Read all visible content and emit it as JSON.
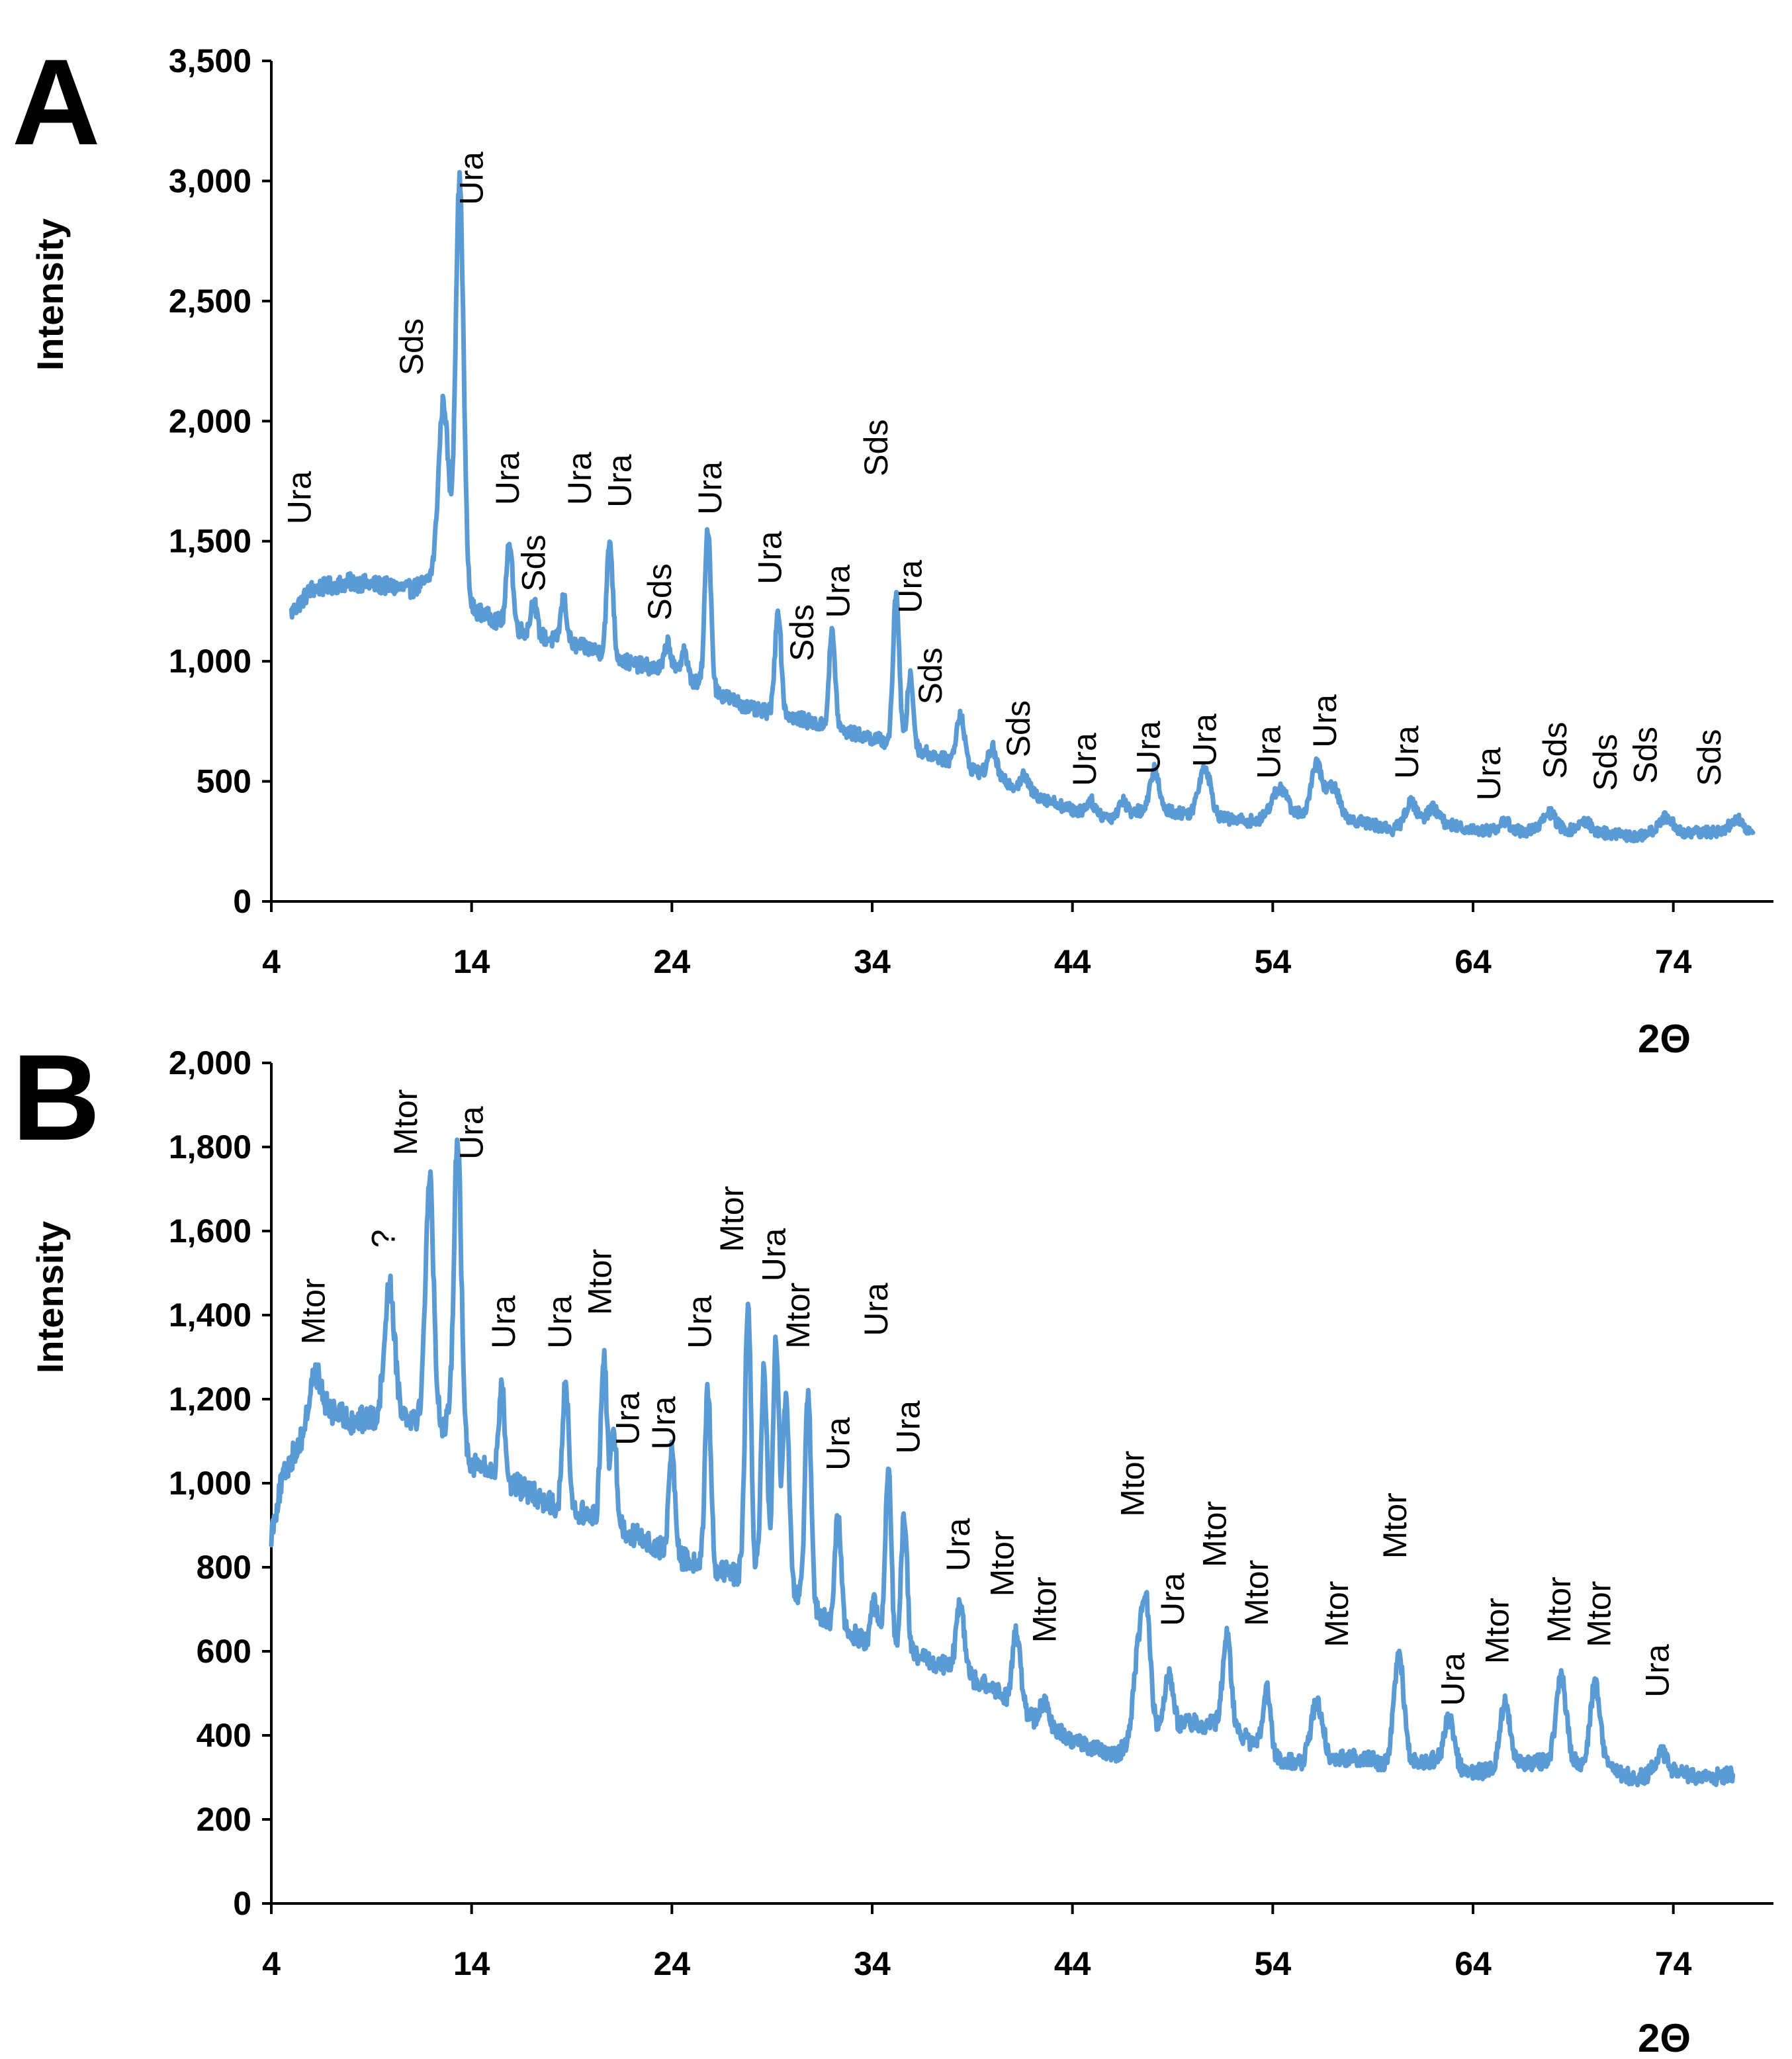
{
  "colors": {
    "series": "#5b9bd5",
    "axis": "#000000"
  },
  "chart_data": [
    {
      "panel": "A",
      "type": "line",
      "title": "",
      "xlabel": "2Θ",
      "ylabel": "Intensity",
      "xlim": [
        4,
        79
      ],
      "ylim": [
        0,
        3500
      ],
      "xticks": [
        4,
        14,
        24,
        34,
        44,
        54,
        64,
        74
      ],
      "yticks": [
        0,
        500,
        1000,
        1500,
        2000,
        2500,
        3000,
        3500
      ],
      "xtick_labels": [
        "4",
        "14",
        "24",
        "34",
        "44",
        "54",
        "64",
        "74"
      ],
      "ytick_labels": [
        "0",
        "500",
        "1,000",
        "1,500",
        "2,000",
        "2,500",
        "3,000",
        "3,500"
      ],
      "baseline": [
        [
          5,
          1200
        ],
        [
          6,
          1300
        ],
        [
          8,
          1330
        ],
        [
          10,
          1310
        ],
        [
          11,
          1300
        ],
        [
          12,
          1340
        ],
        [
          14,
          1220
        ],
        [
          16,
          1140
        ],
        [
          18,
          1090
        ],
        [
          20,
          1050
        ],
        [
          22,
          990
        ],
        [
          24,
          960
        ],
        [
          26,
          880
        ],
        [
          28,
          800
        ],
        [
          30,
          770
        ],
        [
          32,
          720
        ],
        [
          34,
          680
        ],
        [
          36,
          640
        ],
        [
          38,
          580
        ],
        [
          40,
          520
        ],
        [
          42,
          450
        ],
        [
          44,
          380
        ],
        [
          46,
          350
        ],
        [
          48,
          390
        ],
        [
          50,
          360
        ],
        [
          52,
          340
        ],
        [
          54,
          330
        ],
        [
          56,
          380
        ],
        [
          58,
          340
        ],
        [
          60,
          300
        ],
        [
          62,
          330
        ],
        [
          64,
          300
        ],
        [
          66,
          290
        ],
        [
          68,
          300
        ],
        [
          70,
          290
        ],
        [
          72,
          270
        ],
        [
          74,
          280
        ],
        [
          76,
          290
        ],
        [
          78,
          270
        ]
      ],
      "peaks": [
        [
          12.6,
          2080,
          0.25
        ],
        [
          13.4,
          3000,
          0.2
        ],
        [
          15.9,
          1500,
          0.15
        ],
        [
          17.1,
          1250,
          0.15
        ],
        [
          18.6,
          1260,
          0.15
        ],
        [
          20.9,
          1500,
          0.15
        ],
        [
          23.8,
          1080,
          0.15
        ],
        [
          24.6,
          1050,
          0.15
        ],
        [
          25.8,
          1560,
          0.15
        ],
        [
          29.3,
          1220,
          0.15
        ],
        [
          32.0,
          1120,
          0.15
        ],
        [
          35.2,
          1290,
          0.15
        ],
        [
          35.9,
          940,
          0.15
        ],
        [
          38.4,
          780,
          0.2
        ],
        [
          40.0,
          640,
          0.2
        ],
        [
          41.6,
          520,
          0.2
        ],
        [
          44.9,
          420,
          0.2
        ],
        [
          46.5,
          420,
          0.2
        ],
        [
          48.1,
          550,
          0.2
        ],
        [
          50.6,
          560,
          0.3
        ],
        [
          54.3,
          470,
          0.4
        ],
        [
          56.2,
          570,
          0.25
        ],
        [
          57.0,
          480,
          0.3
        ],
        [
          60.9,
          410,
          0.3
        ],
        [
          62.0,
          390,
          0.3
        ],
        [
          65.6,
          330,
          0.3
        ],
        [
          67.8,
          370,
          0.3
        ],
        [
          69.6,
          330,
          0.3
        ],
        [
          73.6,
          350,
          0.4
        ],
        [
          77.2,
          340,
          0.4
        ]
      ],
      "annotations": [
        {
          "text": "Ura",
          "x": 5.4,
          "y": 1570
        },
        {
          "text": "Sds",
          "x": 11.0,
          "y": 2190
        },
        {
          "text": "Ura",
          "x": 14.0,
          "y": 2900
        },
        {
          "text": "Ura",
          "x": 15.8,
          "y": 1650
        },
        {
          "text": "Sds",
          "x": 17.1,
          "y": 1290
        },
        {
          "text": "Ura",
          "x": 19.4,
          "y": 1650
        },
        {
          "text": "Ura",
          "x": 21.4,
          "y": 1640
        },
        {
          "text": "Sds",
          "x": 23.4,
          "y": 1170
        },
        {
          "text": "Ura",
          "x": 25.9,
          "y": 1610
        },
        {
          "text": "Ura",
          "x": 28.9,
          "y": 1320
        },
        {
          "text": "Sds",
          "x": 30.5,
          "y": 1000
        },
        {
          "text": "Ura",
          "x": 32.3,
          "y": 1180
        },
        {
          "text": "Sds",
          "x": 34.2,
          "y": 1770
        },
        {
          "text": "Ura",
          "x": 35.9,
          "y": 1200
        },
        {
          "text": "Sds",
          "x": 36.9,
          "y": 820
        },
        {
          "text": "Sds",
          "x": 41.3,
          "y": 600
        },
        {
          "text": "Ura",
          "x": 44.6,
          "y": 480
        },
        {
          "text": "Ura",
          "x": 47.8,
          "y": 530
        },
        {
          "text": "Ura",
          "x": 50.6,
          "y": 560
        },
        {
          "text": "Ura",
          "x": 53.8,
          "y": 510
        },
        {
          "text": "Ura",
          "x": 56.6,
          "y": 640
        },
        {
          "text": "Ura",
          "x": 60.7,
          "y": 510
        },
        {
          "text": "Ura",
          "x": 64.8,
          "y": 420
        },
        {
          "text": "Sds",
          "x": 68.1,
          "y": 510
        },
        {
          "text": "Sds",
          "x": 70.6,
          "y": 460
        },
        {
          "text": "Sds",
          "x": 72.6,
          "y": 490
        },
        {
          "text": "Sds",
          "x": 75.8,
          "y": 480
        }
      ]
    },
    {
      "panel": "B",
      "type": "line",
      "title": "",
      "xlabel": "2Θ",
      "ylabel": "Intensity",
      "xlim": [
        4,
        79
      ],
      "ylim": [
        0,
        2000
      ],
      "xticks": [
        4,
        14,
        24,
        34,
        44,
        54,
        64,
        74
      ],
      "yticks": [
        0,
        200,
        400,
        600,
        800,
        1000,
        1200,
        1400,
        1600,
        1800,
        2000
      ],
      "xtick_labels": [
        "4",
        "14",
        "24",
        "34",
        "44",
        "54",
        "64",
        "74"
      ],
      "ytick_labels": [
        "0",
        "200",
        "400",
        "600",
        "800",
        "1,000",
        "1,200",
        "1,400",
        "1,600",
        "1,800",
        "2,000"
      ],
      "baseline": [
        [
          4,
          880
        ],
        [
          4.5,
          1000
        ],
        [
          5,
          1060
        ],
        [
          6,
          1140
        ],
        [
          7,
          1170
        ],
        [
          8,
          1150
        ],
        [
          9,
          1150
        ],
        [
          10,
          1170
        ],
        [
          11,
          1160
        ],
        [
          12,
          1150
        ],
        [
          13,
          1130
        ],
        [
          14,
          1050
        ],
        [
          16,
          1000
        ],
        [
          18,
          950
        ],
        [
          20,
          920
        ],
        [
          22,
          880
        ],
        [
          24,
          830
        ],
        [
          26,
          790
        ],
        [
          28,
          780
        ],
        [
          30,
          740
        ],
        [
          31,
          700
        ],
        [
          32,
          660
        ],
        [
          34,
          620
        ],
        [
          36,
          590
        ],
        [
          38,
          560
        ],
        [
          40,
          510
        ],
        [
          42,
          440
        ],
        [
          44,
          390
        ],
        [
          46,
          350
        ],
        [
          48,
          420
        ],
        [
          50,
          430
        ],
        [
          52,
          420
        ],
        [
          54,
          340
        ],
        [
          56,
          330
        ],
        [
          58,
          350
        ],
        [
          60,
          330
        ],
        [
          62,
          340
        ],
        [
          64,
          310
        ],
        [
          66,
          330
        ],
        [
          68,
          340
        ],
        [
          70,
          330
        ],
        [
          72,
          300
        ],
        [
          74,
          310
        ],
        [
          76,
          300
        ],
        [
          77,
          310
        ]
      ],
      "peaks": [
        [
          6.2,
          1260,
          0.3
        ],
        [
          9.9,
          1470,
          0.25
        ],
        [
          11.9,
          1730,
          0.2
        ],
        [
          13.3,
          1830,
          0.18
        ],
        [
          15.5,
          1230,
          0.15
        ],
        [
          18.7,
          1240,
          0.15
        ],
        [
          20.6,
          1310,
          0.15
        ],
        [
          21.1,
          1120,
          0.15
        ],
        [
          24.0,
          1080,
          0.15
        ],
        [
          25.8,
          1220,
          0.15
        ],
        [
          27.8,
          1420,
          0.15
        ],
        [
          28.6,
          1270,
          0.15
        ],
        [
          29.2,
          1340,
          0.15
        ],
        [
          29.7,
          1210,
          0.15
        ],
        [
          30.8,
          1210,
          0.15
        ],
        [
          32.3,
          930,
          0.15
        ],
        [
          34.1,
          720,
          0.15
        ],
        [
          34.8,
          1040,
          0.15
        ],
        [
          35.6,
          930,
          0.15
        ],
        [
          38.4,
          710,
          0.2
        ],
        [
          41.2,
          650,
          0.2
        ],
        [
          42.6,
          480,
          0.2
        ],
        [
          47.3,
          600,
          0.25
        ],
        [
          47.7,
          670,
          0.2
        ],
        [
          48.8,
          550,
          0.2
        ],
        [
          51.7,
          640,
          0.2
        ],
        [
          53.7,
          510,
          0.2
        ],
        [
          56.2,
          480,
          0.3
        ],
        [
          60.3,
          590,
          0.25
        ],
        [
          62.8,
          440,
          0.25
        ],
        [
          65.6,
          480,
          0.25
        ],
        [
          68.4,
          540,
          0.25
        ],
        [
          70.1,
          520,
          0.25
        ],
        [
          73.4,
          360,
          0.3
        ]
      ],
      "annotations": [
        {
          "text": "Mtor",
          "x": 6.1,
          "y": 1330
        },
        {
          "text": "?",
          "x": 9.6,
          "y": 1560
        },
        {
          "text": "Mtor",
          "x": 10.7,
          "y": 1780
        },
        {
          "text": "Ura",
          "x": 14.0,
          "y": 1770
        },
        {
          "text": "Ura",
          "x": 15.6,
          "y": 1320
        },
        {
          "text": "Ura",
          "x": 18.4,
          "y": 1320
        },
        {
          "text": "Mtor",
          "x": 20.4,
          "y": 1400
        },
        {
          "text": "Ura",
          "x": 21.8,
          "y": 1090
        },
        {
          "text": "Ura",
          "x": 23.6,
          "y": 1080
        },
        {
          "text": "Ura",
          "x": 25.4,
          "y": 1320
        },
        {
          "text": "Mtor",
          "x": 27.0,
          "y": 1550
        },
        {
          "text": "Ura",
          "x": 29.1,
          "y": 1480
        },
        {
          "text": "Mtor",
          "x": 30.3,
          "y": 1320
        },
        {
          "text": "Ura",
          "x": 32.3,
          "y": 1030
        },
        {
          "text": "Ura",
          "x": 34.2,
          "y": 1350
        },
        {
          "text": "Ura",
          "x": 35.8,
          "y": 1070
        },
        {
          "text": "Ura",
          "x": 38.3,
          "y": 790
        },
        {
          "text": "Mtor",
          "x": 40.5,
          "y": 730
        },
        {
          "text": "Mtor",
          "x": 42.6,
          "y": 620
        },
        {
          "text": "Mtor",
          "x": 47.0,
          "y": 920
        },
        {
          "text": "Ura",
          "x": 49.0,
          "y": 660
        },
        {
          "text": "Mtor",
          "x": 51.1,
          "y": 800
        },
        {
          "text": "Mtor",
          "x": 53.2,
          "y": 660
        },
        {
          "text": "Mtor",
          "x": 57.2,
          "y": 610
        },
        {
          "text": "Mtor",
          "x": 60.1,
          "y": 820
        },
        {
          "text": "Ura",
          "x": 63.0,
          "y": 470
        },
        {
          "text": "Mtor",
          "x": 65.2,
          "y": 570
        },
        {
          "text": "Mtor",
          "x": 68.3,
          "y": 620
        },
        {
          "text": "Mtor",
          "x": 70.3,
          "y": 610
        },
        {
          "text": "Ura",
          "x": 73.2,
          "y": 490
        }
      ]
    }
  ]
}
